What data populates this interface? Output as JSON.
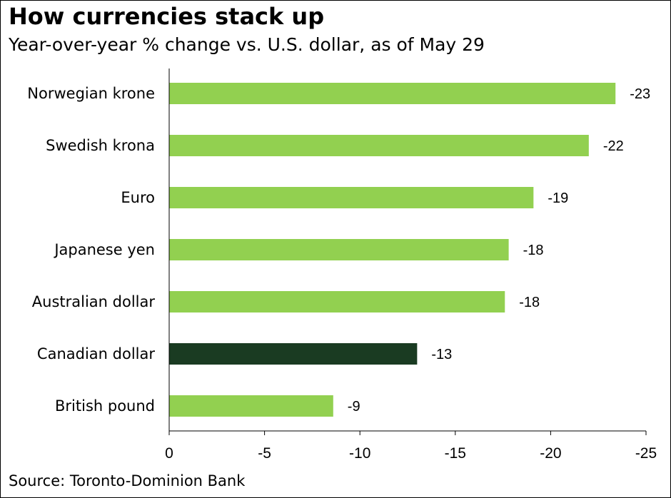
{
  "chart_data": {
    "type": "bar",
    "orientation": "horizontal",
    "title": "How currencies stack up",
    "subtitle": "Year-over-year % change vs. U.S. dollar, as of May 29",
    "source": "Source: Toronto-Dominion Bank",
    "categories": [
      "Norwegian krone",
      "Swedish krona",
      "Euro",
      "Japanese yen",
      "Australian dollar",
      "Canadian dollar",
      "British pound"
    ],
    "values": [
      -23.4,
      -22,
      -19.1,
      -17.8,
      -17.6,
      -13,
      -8.6
    ],
    "value_labels": [
      "-23",
      "-22",
      "-19",
      "-18",
      "-18",
      "-13",
      "-9"
    ],
    "highlight": "Canadian dollar",
    "x_ticks": [
      0,
      -5,
      -10,
      -15,
      -20,
      -25
    ],
    "x_tick_labels": [
      "0",
      "-5",
      "-10",
      "-15",
      "-20",
      "-25"
    ],
    "xlim": [
      0,
      -25
    ],
    "xlabel": "",
    "ylabel": "",
    "grid": false,
    "colors": {
      "bar": "#92d050",
      "highlight": "#1a3b22",
      "axis": "#000000"
    }
  }
}
